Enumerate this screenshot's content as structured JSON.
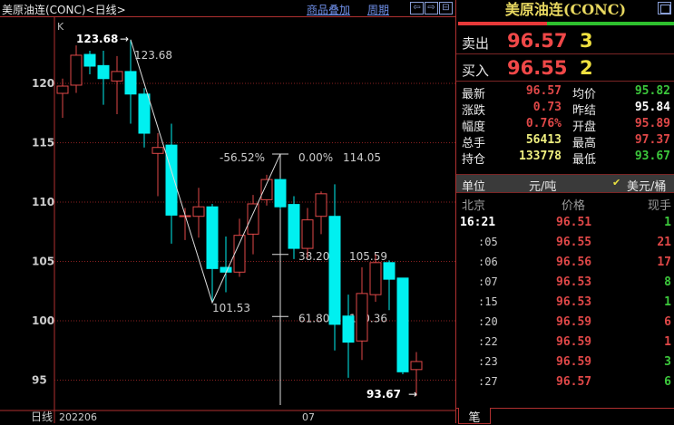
{
  "header": {
    "title": "美原油连(CONC)<日线>",
    "overlay_link": "商品叠加",
    "period_link": "周期",
    "buttons": [
      "left-arrow",
      "right-arrow",
      "grid"
    ]
  },
  "chart": {
    "indicator_label": "K",
    "period_label": "日线",
    "x_labels": [
      "202206",
      "07"
    ],
    "y_ticks": [
      120,
      115,
      110,
      105,
      100,
      95
    ],
    "colors": {
      "up": "#e04848",
      "down": "#00f0f0",
      "grid": "#8a2020",
      "axis": "#b03030"
    },
    "candles": [
      {
        "o": 119.16,
        "h": 120.4,
        "l": 117.1,
        "c": 119.77
      },
      {
        "o": 119.85,
        "h": 123.2,
        "l": 119.2,
        "c": 122.37
      },
      {
        "o": 122.44,
        "h": 122.75,
        "l": 120.76,
        "c": 121.45
      },
      {
        "o": 121.5,
        "h": 122.75,
        "l": 118.2,
        "c": 120.4
      },
      {
        "o": 120.2,
        "h": 122.3,
        "l": 117.4,
        "c": 121.0
      },
      {
        "o": 121.0,
        "h": 123.68,
        "l": 116.6,
        "c": 119.1
      },
      {
        "o": 119.1,
        "h": 119.6,
        "l": 114.6,
        "c": 115.8
      },
      {
        "o": 114.1,
        "h": 115.8,
        "l": 110.5,
        "c": 114.6
      },
      {
        "o": 114.8,
        "h": 116.6,
        "l": 106.5,
        "c": 108.9
      },
      {
        "o": 108.8,
        "h": 109.5,
        "l": 106.8,
        "c": 108.85
      },
      {
        "o": 108.8,
        "h": 111.2,
        "l": 107.0,
        "c": 109.6
      },
      {
        "o": 109.6,
        "h": 109.85,
        "l": 101.53,
        "c": 104.4
      },
      {
        "o": 104.5,
        "h": 107.1,
        "l": 102.4,
        "c": 104.1
      },
      {
        "o": 104.1,
        "h": 108.6,
        "l": 103.7,
        "c": 107.2
      },
      {
        "o": 107.3,
        "h": 110.6,
        "l": 105.6,
        "c": 109.85
      },
      {
        "o": 110.2,
        "h": 112.3,
        "l": 109.7,
        "c": 111.9
      },
      {
        "o": 111.9,
        "h": 112.0,
        "l": 109.4,
        "c": 109.6
      },
      {
        "o": 109.8,
        "h": 110.5,
        "l": 105.2,
        "c": 106.1
      },
      {
        "o": 106.1,
        "h": 109.5,
        "l": 105.3,
        "c": 108.5
      },
      {
        "o": 108.8,
        "h": 110.9,
        "l": 107.3,
        "c": 110.7
      },
      {
        "o": 108.8,
        "h": 111.5,
        "l": 97.5,
        "c": 99.7
      },
      {
        "o": 100.4,
        "h": 102.2,
        "l": 95.2,
        "c": 98.2
      },
      {
        "o": 98.3,
        "h": 104.5,
        "l": 96.7,
        "c": 102.3
      },
      {
        "o": 102.2,
        "h": 105.59,
        "l": 101.6,
        "c": 104.9
      },
      {
        "o": 104.9,
        "h": 105.1,
        "l": 100.9,
        "c": 103.5
      },
      {
        "o": 103.6,
        "h": 103.6,
        "l": 95.5,
        "c": 95.7
      },
      {
        "o": 95.89,
        "h": 97.37,
        "l": 93.67,
        "c": 96.57
      }
    ],
    "high_marker": "123.68",
    "high_label": "123.68",
    "low_marker": "93.67",
    "trend_low_label": "101.53",
    "fib": {
      "swing": "-56.52%",
      "levels": [
        {
          "pct": "0.00%",
          "price": "114.05",
          "v": 114.05
        },
        {
          "pct": "38.20%",
          "price": "105.59",
          "v": 105.59
        },
        {
          "pct": "61.80%",
          "price": "100.36",
          "v": 100.36
        }
      ]
    }
  },
  "quote": {
    "title": "美原油连(CONC)",
    "buy_ratio": 0.41,
    "ask": {
      "label": "卖出",
      "price": "96.57",
      "vol": "3"
    },
    "bid": {
      "label": "买入",
      "price": "96.55",
      "vol": "2"
    },
    "stats": [
      {
        "l": "最新",
        "v": "96.57",
        "c": "#e04848",
        "l2": "均价",
        "v2": "95.82",
        "c2": "#3cc83c"
      },
      {
        "l": "涨跌",
        "v": "0.73",
        "c": "#e04848",
        "l2": "昨结",
        "v2": "95.84",
        "c2": "#ffffff"
      },
      {
        "l": "幅度",
        "v": "0.76%",
        "c": "#e04848",
        "l2": "开盘",
        "v2": "95.89",
        "c2": "#e04848"
      },
      {
        "l": "总手",
        "v": "56413",
        "c": "#f0f080",
        "l2": "最高",
        "v2": "97.37",
        "c2": "#e04848"
      },
      {
        "l": "持仓",
        "v": "133778",
        "c": "#f0f080",
        "l2": "最低",
        "v2": "93.67",
        "c2": "#3cc83c"
      }
    ],
    "unit": {
      "label": "单位",
      "opt1": "元/吨",
      "opt2": "美元/桶",
      "selected": "美元/桶"
    },
    "ticks_header": {
      "time": "北京",
      "price": "价格",
      "vol": "现手"
    },
    "ticks": [
      {
        "t": "16:21",
        "p": "96.51",
        "v": "1",
        "vc": "#3cc83c"
      },
      {
        "t": ":05",
        "p": "96.55",
        "v": "21",
        "vc": "#e04848"
      },
      {
        "t": ":06",
        "p": "96.56",
        "v": "17",
        "vc": "#e04848"
      },
      {
        "t": ":07",
        "p": "96.53",
        "v": "8",
        "vc": "#3cc83c"
      },
      {
        "t": ":15",
        "p": "96.53",
        "v": "1",
        "vc": "#3cc83c"
      },
      {
        "t": ":20",
        "p": "96.59",
        "v": "6",
        "vc": "#e04848"
      },
      {
        "t": ":22",
        "p": "96.59",
        "v": "1",
        "vc": "#e04848"
      },
      {
        "t": ":23",
        "p": "96.59",
        "v": "3",
        "vc": "#3cc83c"
      },
      {
        "t": ":27",
        "p": "96.57",
        "v": "6",
        "vc": "#3cc83c"
      }
    ],
    "tab": "笔"
  }
}
